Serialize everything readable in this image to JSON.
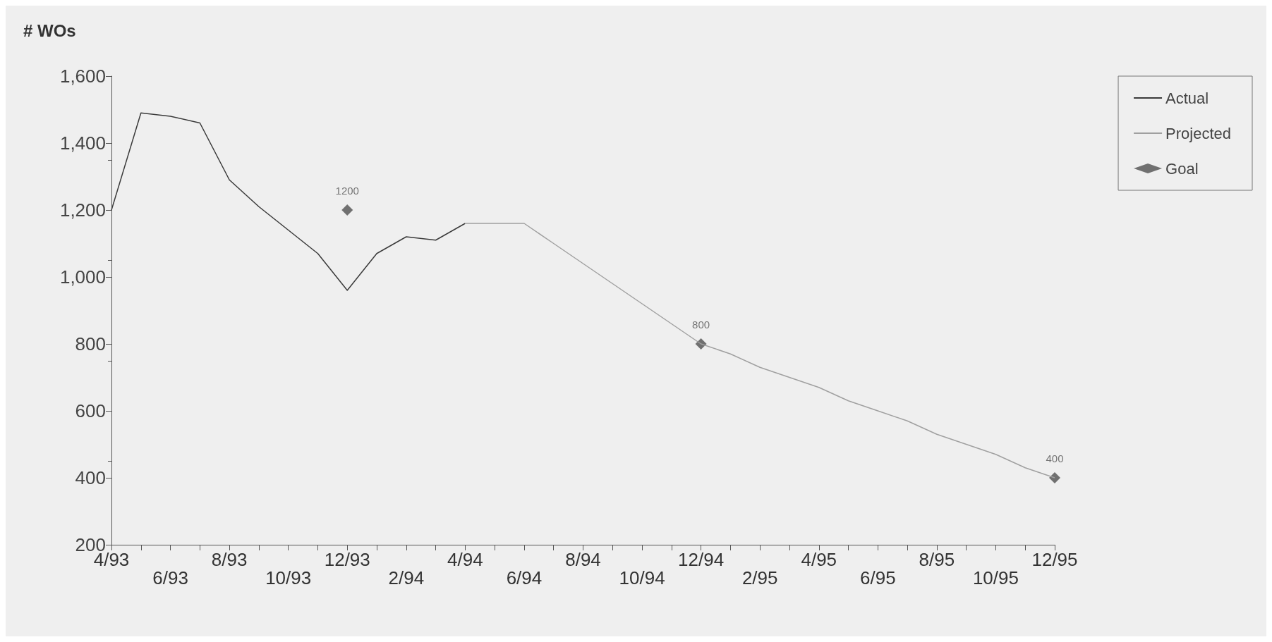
{
  "chart_data": {
    "type": "line",
    "ylabel": "# WOs",
    "categories": [
      "4/93",
      null,
      "6/93",
      null,
      "8/93",
      null,
      "10/93",
      null,
      "12/93",
      null,
      "2/94",
      null,
      "4/94",
      null,
      "6/94",
      null,
      "8/94",
      null,
      "10/94",
      null,
      "12/94",
      null,
      "2/95",
      null,
      "4/95",
      null,
      "6/95",
      null,
      "8/95",
      null,
      "10/95",
      null,
      "12/95"
    ],
    "series": [
      {
        "name": "Actual",
        "color": "#3a3a3a",
        "line_style": "solid",
        "marker": "none",
        "values": [
          1200,
          1490,
          1480,
          1460,
          1290,
          1210,
          1140,
          1070,
          960,
          1070,
          1120,
          1110,
          1160,
          null,
          null,
          null,
          null,
          null,
          null,
          null,
          null,
          null,
          null,
          null,
          null,
          null,
          null,
          null,
          null,
          null,
          null,
          null,
          null
        ]
      },
      {
        "name": "Projected",
        "color": "#a0a0a0",
        "line_style": "solid",
        "marker": "none",
        "values": [
          null,
          null,
          null,
          null,
          null,
          null,
          null,
          null,
          null,
          null,
          null,
          null,
          1160,
          1160,
          1160,
          1100,
          1040,
          980,
          920,
          860,
          800,
          770,
          730,
          700,
          670,
          630,
          600,
          570,
          530,
          500,
          470,
          430,
          400
        ]
      },
      {
        "name": "Goal",
        "type": "scatter",
        "color": "#505050",
        "marker": "diamond",
        "data_labels": true,
        "values": [
          null,
          null,
          null,
          null,
          null,
          null,
          null,
          null,
          1200,
          null,
          null,
          null,
          null,
          null,
          null,
          null,
          null,
          null,
          null,
          null,
          800,
          null,
          null,
          null,
          null,
          null,
          null,
          null,
          null,
          null,
          null,
          null,
          400
        ]
      }
    ],
    "ylim": [
      200,
      1600
    ],
    "yticks": [
      {
        "value": 200,
        "label": "200"
      },
      {
        "value": 400,
        "label": "400"
      },
      {
        "value": 600,
        "label": "600"
      },
      {
        "value": 800,
        "label": "800"
      },
      {
        "value": 1000,
        "label": "1,000"
      },
      {
        "value": 1200,
        "label": "1,200"
      },
      {
        "value": 1400,
        "label": "1,400"
      },
      {
        "value": 1600,
        "label": "1,600"
      }
    ],
    "grid": false,
    "legend": "top right"
  }
}
